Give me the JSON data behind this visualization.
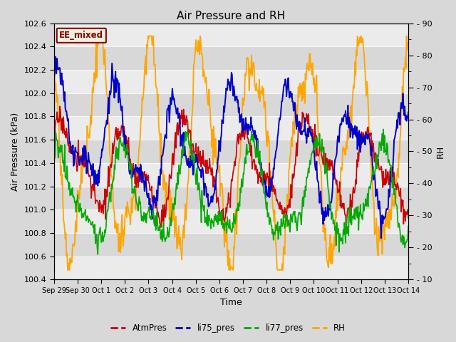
{
  "title": "Air Pressure and RH",
  "xlabel": "Time",
  "ylabel_left": "Air Pressure (kPa)",
  "ylabel_right": "RH",
  "ylim_left": [
    100.4,
    102.6
  ],
  "ylim_right": [
    10,
    90
  ],
  "yticks_left": [
    100.4,
    100.6,
    100.8,
    101.0,
    101.2,
    101.4,
    101.6,
    101.8,
    102.0,
    102.2,
    102.4,
    102.6
  ],
  "yticks_right_major": [
    10,
    20,
    30,
    40,
    50,
    60,
    70,
    80,
    90
  ],
  "yticks_right_minor": [
    15,
    25,
    35,
    45,
    55,
    65,
    75,
    85
  ],
  "date_labels": [
    "Sep 29",
    "Sep 30",
    "Oct 1",
    "Oct 2",
    "Oct 3",
    "Oct 4",
    "Oct 5",
    "Oct 6",
    "Oct 7",
    "Oct 8",
    "Oct 9",
    "Oct 10",
    "Oct 11",
    "Oct 12",
    "Oct 13",
    "Oct 14"
  ],
  "annotation_text": "EE_mixed",
  "annotation_color": "#8B0000",
  "legend_items": [
    "AtmPres",
    "li75_pres",
    "li77_pres",
    "RH"
  ],
  "line_colors": [
    "#CC0000",
    "#0000CC",
    "#00AA00",
    "#FFA500"
  ],
  "background_color": "#D8D8D8",
  "band_color": "#EBEBEB",
  "title_fontsize": 11,
  "axis_label_fontsize": 9,
  "tick_fontsize": 8
}
